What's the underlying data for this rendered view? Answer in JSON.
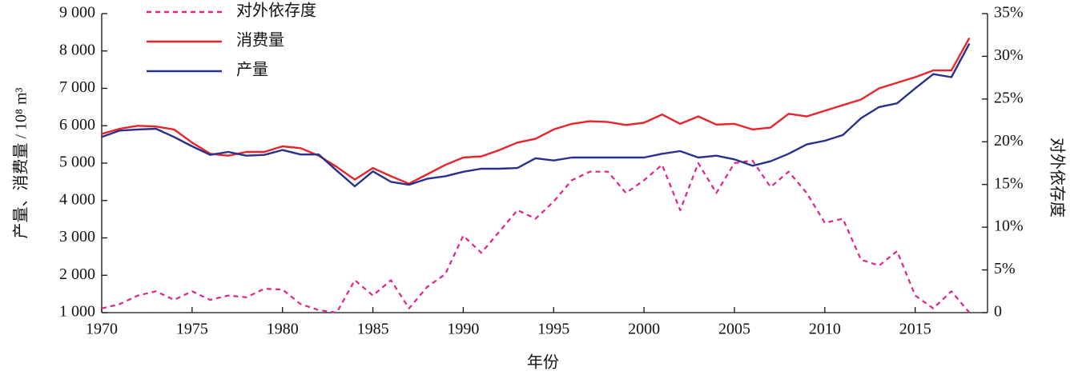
{
  "chart_data": {
    "type": "line",
    "xlabel": "年份",
    "ylabel": "产量、消费量 / 10⁸ m³",
    "y2label": "对外依存度",
    "x": [
      1970,
      1971,
      1972,
      1973,
      1974,
      1975,
      1976,
      1977,
      1978,
      1979,
      1980,
      1981,
      1982,
      1983,
      1984,
      1985,
      1986,
      1987,
      1988,
      1989,
      1990,
      1991,
      1992,
      1993,
      1994,
      1995,
      1996,
      1997,
      1998,
      1999,
      2000,
      2001,
      2002,
      2003,
      2004,
      2005,
      2006,
      2007,
      2008,
      2009,
      2010,
      2011,
      2012,
      2013,
      2014,
      2015,
      2016,
      2017,
      2018
    ],
    "xlim": [
      1970,
      2019
    ],
    "xticks": [
      1970,
      1975,
      1980,
      1985,
      1990,
      1995,
      2000,
      2005,
      2010,
      2015
    ],
    "ylim": [
      1000,
      9000
    ],
    "yticks": [
      {
        "value": 1000,
        "label": "1 000"
      },
      {
        "value": 2000,
        "label": "2 000"
      },
      {
        "value": 3000,
        "label": "3 000"
      },
      {
        "value": 4000,
        "label": "4 000"
      },
      {
        "value": 5000,
        "label": "5 000"
      },
      {
        "value": 6000,
        "label": "6 000"
      },
      {
        "value": 7000,
        "label": "7 000"
      },
      {
        "value": 8000,
        "label": "8 000"
      },
      {
        "value": 9000,
        "label": "9 000"
      }
    ],
    "y2lim": [
      0,
      35
    ],
    "y2ticks": [
      {
        "value": 0,
        "label": "0"
      },
      {
        "value": 5,
        "label": "5%"
      },
      {
        "value": 10,
        "label": "10%"
      },
      {
        "value": 15,
        "label": "15%"
      },
      {
        "value": 20,
        "label": "20%"
      },
      {
        "value": 25,
        "label": "25%"
      },
      {
        "value": 30,
        "label": "30%"
      },
      {
        "value": 35,
        "label": "35%"
      }
    ],
    "legend": "upper left",
    "series": [
      {
        "name": "对外依存度",
        "color": "#e0228c",
        "dashed": true,
        "axis": "y2",
        "values": [
          0.5,
          1,
          2,
          2.5,
          1.5,
          2.5,
          1.5,
          2,
          1.8,
          2.8,
          2.7,
          1,
          0.3,
          0,
          3.8,
          2,
          3.8,
          0.5,
          3,
          4.5,
          9,
          7,
          9.5,
          12,
          11,
          13,
          15.5,
          16.5,
          16.5,
          14,
          15.5,
          17.3,
          12,
          17.5,
          14,
          17.5,
          17.8,
          14.7,
          16.5,
          14,
          10.5,
          11,
          6.2,
          5.5,
          7.2,
          2,
          0.5,
          2.5,
          0
        ]
      },
      {
        "name": "消费量",
        "color": "#e8232a",
        "values": [
          5780,
          5920,
          6000,
          5980,
          5900,
          5550,
          5250,
          5200,
          5300,
          5300,
          5450,
          5400,
          5200,
          4900,
          4560,
          4870,
          4650,
          4450,
          4700,
          4950,
          5150,
          5180,
          5350,
          5550,
          5650,
          5900,
          6050,
          6120,
          6100,
          6020,
          6080,
          6300,
          6050,
          6250,
          6030,
          6050,
          5900,
          5950,
          6320,
          6250,
          6400,
          6550,
          6700,
          7000,
          7150,
          7300,
          7480,
          7480,
          8350
        ]
      },
      {
        "name": "产量",
        "color": "#27318b",
        "values": [
          5700,
          5870,
          5900,
          5920,
          5700,
          5450,
          5220,
          5300,
          5200,
          5220,
          5350,
          5230,
          5230,
          4800,
          4380,
          4780,
          4500,
          4420,
          4580,
          4650,
          4770,
          4850,
          4850,
          4870,
          5130,
          5070,
          5150,
          5150,
          5150,
          5150,
          5150,
          5250,
          5320,
          5150,
          5200,
          5100,
          4930,
          5050,
          5250,
          5500,
          5600,
          5750,
          6200,
          6500,
          6600,
          7000,
          7380,
          7300,
          8200
        ]
      }
    ]
  }
}
